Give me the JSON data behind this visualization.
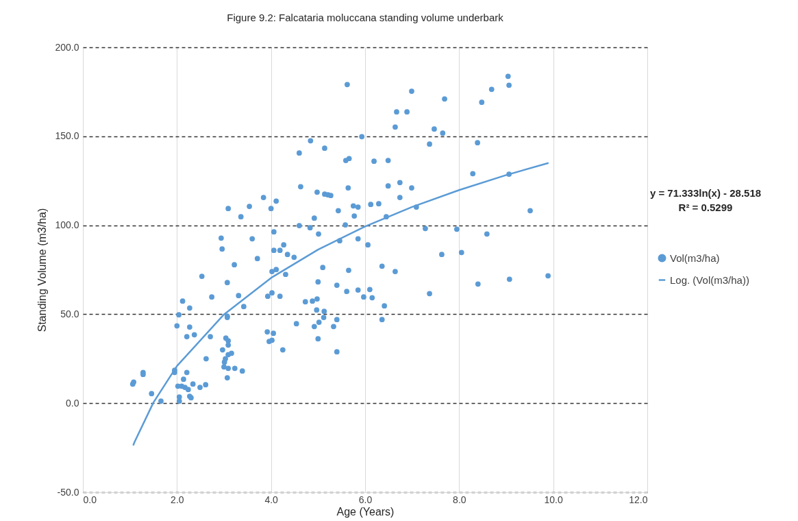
{
  "chart_data": {
    "type": "scatter",
    "title": "Figure 9.2: Falcataria moluccana standing volume underbark",
    "xlabel": "Age (Years)",
    "ylabel": "Standing Volume (m3/ha)",
    "xlim": [
      0,
      12
    ],
    "xticks": [
      {
        "value": 0,
        "label": "0.0"
      },
      {
        "value": 2,
        "label": "2.0"
      },
      {
        "value": 4,
        "label": "4.0"
      },
      {
        "value": 6,
        "label": "6.0"
      },
      {
        "value": 8,
        "label": "8.0"
      },
      {
        "value": 10,
        "label": "10.0"
      },
      {
        "value": 12,
        "label": "12.0"
      }
    ],
    "ylim": [
      -50,
      200
    ],
    "yticks": [
      {
        "value": -50,
        "label": "-50.0"
      },
      {
        "value": 0,
        "label": "0.0"
      },
      {
        "value": 50,
        "label": "50.0"
      },
      {
        "value": 100,
        "label": "100.0"
      },
      {
        "value": 150,
        "label": "150.0"
      },
      {
        "value": 200,
        "label": "200.0"
      }
    ],
    "grid": true,
    "legend": "right",
    "line_style": "solid",
    "annotations": [
      "y = 71.333ln(x) - 28.518",
      "R² = 0.5299"
    ],
    "series": [
      {
        "name": "Vol(m3/ha)",
        "marker": "circle",
        "color": "#5b9bd5",
        "x": [
          1.06,
          1.08,
          1.28,
          1.28,
          1.46,
          1.66,
          1.95,
          1.95,
          2.05,
          2.05,
          2.02,
          2.1,
          2.14,
          2.17,
          2.24,
          2.21,
          2.27,
          2.3,
          2.34,
          2.49,
          2.61,
          2.62,
          2.0,
          2.04,
          2.12,
          2.27,
          2.27,
          2.21,
          2.37,
          2.71,
          2.53,
          2.74,
          3.07,
          3.07,
          3.04,
          3.09,
          3.09,
          2.97,
          3.16,
          3.09,
          3.03,
          3.01,
          3.0,
          3.09,
          3.23,
          3.39,
          3.07,
          3.07,
          2.94,
          2.96,
          3.09,
          3.36,
          3.54,
          3.84,
          4.11,
          4.0,
          4.63,
          4.98,
          5.14,
          5.21,
          5.27,
          3.6,
          3.22,
          3.71,
          4.06,
          4.06,
          4.19,
          4.27,
          4.35,
          4.49,
          4.02,
          4.11,
          4.31,
          3.31,
          3.42,
          3.93,
          4.02,
          4.19,
          4.6,
          4.92,
          4.83,
          5.01,
          5.1,
          5.0,
          4.73,
          4.88,
          4.98,
          4.97,
          5.13,
          5.12,
          5.02,
          4.92,
          5.0,
          4.54,
          3.92,
          4.05,
          3.96,
          4.02,
          4.25,
          5.62,
          6.99,
          7.69,
          8.48,
          8.69,
          6.67,
          6.89,
          6.64,
          7.47,
          7.65,
          5.93,
          4.84,
          7.37,
          8.39,
          4.6,
          5.14,
          5.59,
          5.66,
          6.19,
          6.49,
          8.29,
          5.64,
          6.49,
          6.74,
          6.99,
          6.74,
          5.43,
          5.75,
          5.85,
          6.12,
          6.29,
          5.77,
          6.45,
          7.09,
          5.58,
          5.46,
          5.85,
          6.06,
          7.28,
          7.95,
          8.59,
          7.63,
          8.05,
          5.65,
          6.36,
          6.64,
          5.4,
          5.61,
          5.85,
          6.1,
          5.97,
          6.15,
          7.37,
          8.4,
          6.41,
          6.36,
          5.4,
          5.33,
          5.4,
          9.89,
          9.51,
          9.06,
          9.04,
          9.06,
          9.07
        ],
        "values": [
          10.8,
          11.9,
          17.3,
          16.2,
          5.4,
          1.2,
          18.5,
          17.3,
          3.5,
          1.2,
          9.6,
          9.6,
          13.5,
          8.9,
          7.7,
          17.3,
          3.9,
          3.1,
          10.8,
          8.9,
          10.4,
          25.0,
          43.5,
          49.7,
          57.4,
          53.5,
          42.8,
          37.4,
          38.5,
          37.4,
          71.3,
          59.7,
          48.9,
          48.2,
          36.6,
          35.1,
          32.7,
          30.0,
          28.1,
          27.3,
          25.0,
          23.1,
          20.4,
          19.6,
          19.6,
          18.1,
          14.3,
          67.8,
          92.8,
          86.7,
          109.4,
          104.8,
          110.6,
          115.6,
          113.6,
          109.4,
          121.7,
          118.6,
          117.5,
          117.1,
          116.7,
          92.4,
          77.8,
          81.3,
          96.3,
          85.9,
          85.9,
          89.0,
          83.6,
          82.0,
          74.0,
          75.1,
          72.4,
          60.5,
          54.3,
          60.1,
          62.0,
          60.1,
          99.8,
          104.0,
          98.6,
          95.1,
          76.3,
          68.2,
          57.0,
          57.4,
          58.6,
          52.4,
          51.6,
          48.2,
          45.5,
          43.1,
          36.2,
          44.7,
          40.1,
          39.3,
          34.7,
          35.4,
          30.0,
          179.1,
          175.3,
          171.0,
          169.1,
          176.4,
          163.7,
          163.7,
          155.2,
          154.1,
          151.8,
          149.8,
          147.5,
          145.6,
          146.4,
          140.6,
          143.3,
          136.4,
          137.5,
          136.0,
          136.4,
          129.0,
          121.0,
          122.1,
          124.0,
          121.0,
          115.6,
          108.2,
          110.9,
          110.2,
          111.7,
          112.1,
          105.2,
          104.8,
          110.2,
          100.2,
          91.3,
          92.4,
          89.0,
          98.2,
          97.8,
          95.1,
          83.6,
          84.7,
          74.7,
          77.0,
          74.0,
          66.3,
          62.8,
          63.6,
          63.9,
          59.7,
          59.3,
          61.6,
          67.0,
          54.7,
          47.0,
          28.9,
          43.1,
          47.0,
          71.6,
          108.2,
          128.7,
          183.7,
          178.7,
          69.7
        ]
      },
      {
        "name": "Log. (Vol(m3/ha))",
        "type": "line",
        "marker": "none",
        "color": "#5b9bd5",
        "x": [
          1.07,
          1.1,
          1.5,
          2,
          3,
          4,
          5,
          6,
          7,
          8,
          9,
          9.9
        ],
        "values": [
          -23.7,
          -21.7,
          0.4,
          20.9,
          49.9,
          70.4,
          86.3,
          99.3,
          110.3,
          119.8,
          128.2,
          135.0
        ]
      }
    ]
  }
}
